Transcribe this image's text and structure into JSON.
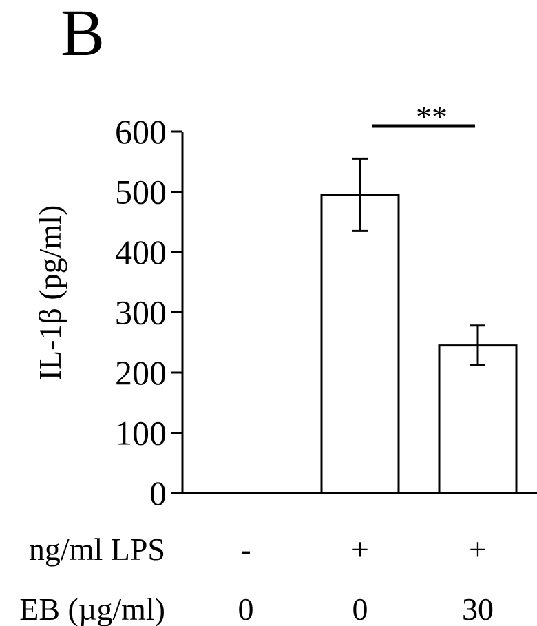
{
  "panel_label": "B",
  "chart_data": {
    "type": "bar",
    "categories": [
      "-/0",
      "+/0",
      "+/30"
    ],
    "values": [
      0,
      495,
      245
    ],
    "error": [
      0,
      60,
      33
    ],
    "ylabel": "IL-1β (pg/ml)",
    "ylim": [
      0,
      600
    ],
    "yticks": [
      "0",
      "100",
      "200",
      "300",
      "400",
      "500",
      "600"
    ],
    "grid": false,
    "significance": {
      "label": "**",
      "between": [
        1,
        2
      ]
    },
    "x_rows": [
      {
        "label": "ng/ml LPS",
        "values": [
          "-",
          "+",
          "+"
        ]
      },
      {
        "label": "EB (µg/ml)",
        "values": [
          "0",
          "0",
          "30"
        ]
      }
    ]
  }
}
